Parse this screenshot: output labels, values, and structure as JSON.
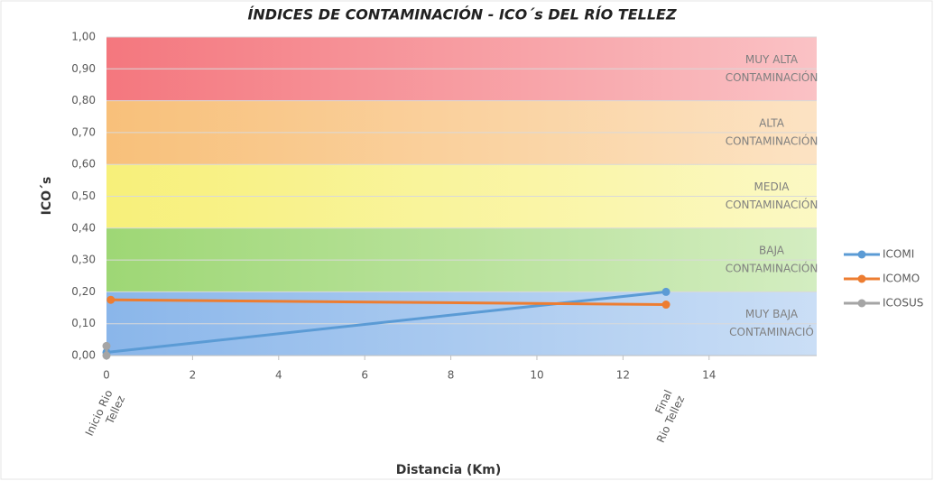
{
  "chart_data": {
    "type": "line",
    "title": "ÍNDICES DE CONTAMINACIÓN - ICO´s DEL RÍO TELLEZ",
    "y_label": "ICO´s",
    "x_label": "Distancia (Km)",
    "xlim": [
      0,
      16.5
    ],
    "xticks": [
      0,
      2,
      4,
      6,
      8,
      10,
      12,
      14
    ],
    "ylim": [
      0,
      1
    ],
    "yticks": [
      {
        "value": 0,
        "label": "0,00"
      },
      {
        "value": 0.1,
        "label": "0,10"
      },
      {
        "value": 0.2,
        "label": "0,20"
      },
      {
        "value": 0.3,
        "label": "0,30"
      },
      {
        "value": 0.4,
        "label": "0,40"
      },
      {
        "value": 0.5,
        "label": "0,50"
      },
      {
        "value": 0.6,
        "label": "0,60"
      },
      {
        "value": 0.7,
        "label": "0,70"
      },
      {
        "value": 0.8,
        "label": "0,80"
      },
      {
        "value": 0.9,
        "label": "0,90"
      },
      {
        "value": 1,
        "label": "1,00"
      }
    ],
    "grid": true,
    "bands": [
      {
        "from": 0.8,
        "to": 1.0,
        "color": "#f4777e",
        "lines": [
          "MUY ALTA",
          "CONTAMINACIÓN"
        ]
      },
      {
        "from": 0.6,
        "to": 0.8,
        "color": "#f8c07a",
        "lines": [
          "ALTA",
          "CONTAMINACIÓN"
        ]
      },
      {
        "from": 0.4,
        "to": 0.6,
        "color": "#f7f07a",
        "lines": [
          "MEDIA",
          "CONTAMINACIÓN"
        ]
      },
      {
        "from": 0.2,
        "to": 0.4,
        "color": "#9ed775",
        "lines": [
          "BAJA",
          "CONTAMINACIÓN"
        ]
      },
      {
        "from": 0.0,
        "to": 0.2,
        "color": "#8ab6ea",
        "lines": [
          "MUY BAJA",
          "CONTAMINACIÓ"
        ]
      }
    ],
    "annotations": [
      {
        "x": 0,
        "lines": [
          "Inicio Rio",
          "Tellez"
        ]
      },
      {
        "x": 13,
        "lines": [
          "Final",
          "Rio Tellez"
        ]
      }
    ],
    "legend": "right",
    "series": [
      {
        "name": "ICOMI",
        "color": "#5b9bd5",
        "x": [
          0,
          13
        ],
        "values": [
          0.01,
          0.2
        ]
      },
      {
        "name": "ICOMO",
        "color": "#ed7d31",
        "x": [
          0.1,
          13
        ],
        "values": [
          0.175,
          0.16
        ]
      },
      {
        "name": "ICOSUS",
        "color": "#a5a5a5",
        "x": [
          0,
          0
        ],
        "values": [
          0.03,
          0.0
        ]
      }
    ]
  }
}
